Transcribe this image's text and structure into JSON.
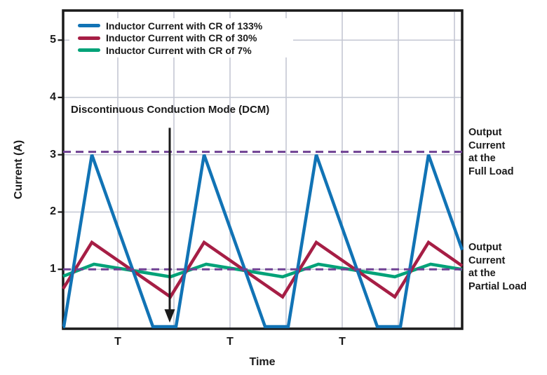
{
  "figure": {
    "background": "#ffffff",
    "frame_color": "#1a1a1a",
    "grid_color": "#c4c7d3",
    "text_color": "#1a1a1a"
  },
  "chart_data": {
    "type": "line",
    "title": "",
    "xlabel": "Time",
    "ylabel": "Current (A)",
    "x_unit_note": "time in units of switching period T; vertical grid every 0.5T",
    "x_range_T": [
      0,
      3.556
    ],
    "ylim_A": [
      -0.04,
      5.52
    ],
    "grid": true,
    "legend_position": "top-left",
    "y_ticks": [
      5,
      4,
      3,
      2,
      1
    ],
    "x_gridlines_T": [
      0.4875,
      0.9875,
      1.4875,
      1.9875,
      2.4875,
      2.9875,
      3.4875
    ],
    "x_tick_labels": [
      "T",
      "T",
      "T"
    ],
    "x_tick_label_positions_T": [
      0.4875,
      1.4875,
      2.4875
    ],
    "series": [
      {
        "name": "Inductor Current with CR of 133%",
        "color": "#1173b5",
        "behavior": "discontinuous conduction: ramps 0 to 3 A, back to 0, dead time at 0 A",
        "points_T_A": [
          [
            0,
            0
          ],
          [
            0.006,
            0
          ],
          [
            0.256,
            3.0
          ],
          [
            0.8,
            0
          ],
          [
            1.006,
            0
          ],
          [
            1.256,
            3.0
          ],
          [
            1.8,
            0
          ],
          [
            2.006,
            0
          ],
          [
            2.256,
            3.0
          ],
          [
            2.8,
            0
          ],
          [
            3.006,
            0
          ],
          [
            3.256,
            3.0
          ],
          [
            3.556,
            1.34
          ]
        ]
      },
      {
        "name": "Inductor Current with CR of 30%",
        "color": "#a61e45",
        "behavior": "continuous triangular ripple between about 0.52 A and 1.47 A",
        "points_T_A": [
          [
            0,
            0.66
          ],
          [
            0.256,
            1.47
          ],
          [
            0.956,
            0.52
          ],
          [
            1.256,
            1.47
          ],
          [
            1.956,
            0.52
          ],
          [
            2.256,
            1.47
          ],
          [
            2.956,
            0.52
          ],
          [
            3.256,
            1.47
          ],
          [
            3.556,
            1.06
          ]
        ]
      },
      {
        "name": "Inductor Current with CR of 7%",
        "color": "#00a278",
        "behavior": "continuous small ripple between about 0.87 A and 1.09 A",
        "points_T_A": [
          [
            0,
            0.88
          ],
          [
            0.275,
            1.09
          ],
          [
            0.956,
            0.87
          ],
          [
            1.275,
            1.09
          ],
          [
            1.956,
            0.87
          ],
          [
            2.275,
            1.09
          ],
          [
            2.956,
            0.87
          ],
          [
            3.275,
            1.09
          ],
          [
            3.556,
            1.0
          ]
        ]
      }
    ],
    "reference_lines": [
      {
        "label": "Output\nCurrent\nat the\nFull Load",
        "value_A": 3.05,
        "color": "#6f4093",
        "style": "dashed"
      },
      {
        "label": "Output\nCurrent\nat the\nPartial Load",
        "value_A": 1.0,
        "color": "#6f4093",
        "style": "dashed"
      }
    ],
    "annotation": {
      "text": "Discontinuous Conduction Mode (DCM)",
      "arrow_color": "#1a1a1a",
      "arrow_t_T": 0.95,
      "arrow_from_A": 3.47,
      "arrow_to_A": 0.07
    }
  }
}
